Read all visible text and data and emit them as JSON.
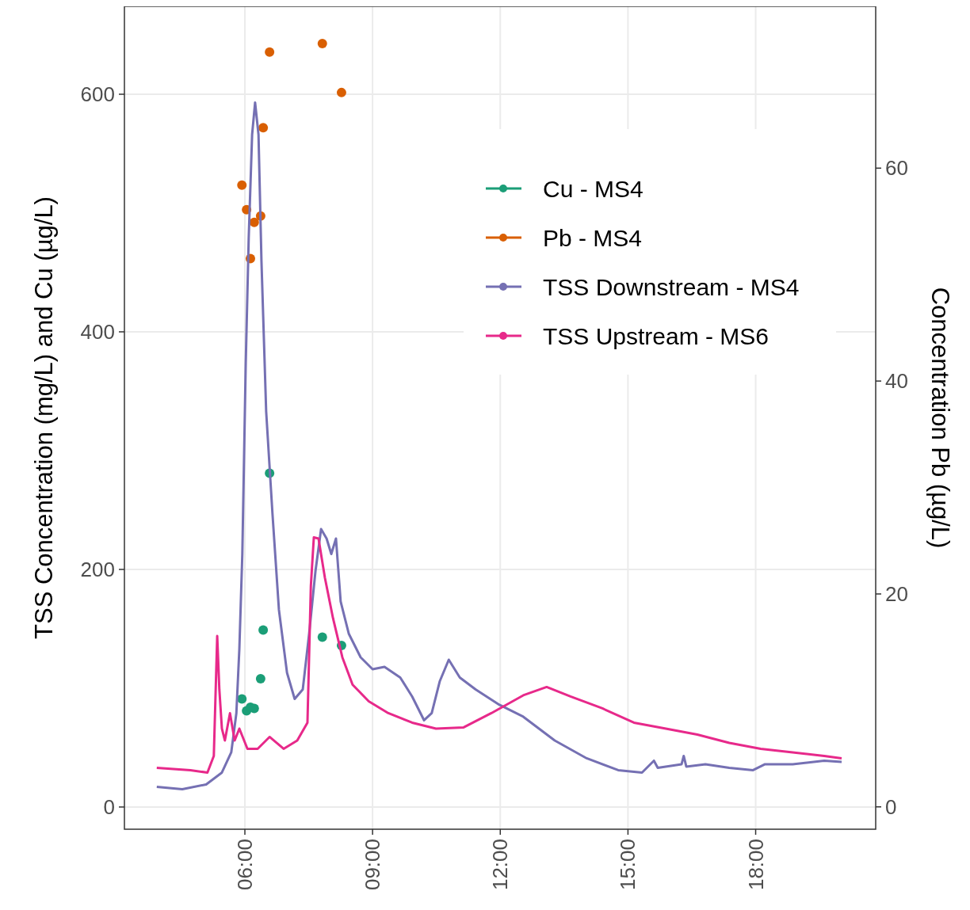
{
  "chart_data": {
    "type": "line",
    "ylabel": "TSS Concentration (mg/L) and Cu (µg/L)",
    "y2label": "Concentration Pb (µg/L)",
    "xlim": [
      3.17,
      20.82
    ],
    "xticks": [
      {
        "value": 6,
        "label": "06:00"
      },
      {
        "value": 9,
        "label": "09:00"
      },
      {
        "value": 12,
        "label": "12:00"
      },
      {
        "value": 15,
        "label": "15:00"
      },
      {
        "value": 18,
        "label": "18:00"
      }
    ],
    "ylim": [
      -18.7,
      674
    ],
    "yticks": [
      0,
      200,
      400,
      600
    ],
    "y2lim": [
      -2.1,
      75.2
    ],
    "y2ticks": [
      0,
      20,
      40,
      60
    ],
    "grid": true,
    "legend": "top right",
    "series": [
      {
        "name": "Cu - MS4",
        "type": "scatter",
        "marker": "circle",
        "color": "#1b9e77",
        "x": [
          5.93,
          6.04,
          6.13,
          6.22,
          6.37,
          6.43,
          6.58,
          7.82,
          8.27
        ],
        "values": [
          91,
          81,
          84,
          83,
          108,
          149,
          281,
          143,
          136
        ]
      },
      {
        "name": "Pb - MS4",
        "type": "scatter",
        "marker": "circle",
        "axis": "y2",
        "color": "#d95f02",
        "x": [
          5.93,
          6.04,
          6.13,
          6.22,
          6.37,
          6.43,
          6.58,
          7.82,
          8.27
        ],
        "values": [
          58.4,
          56.1,
          51.5,
          54.9,
          55.5,
          63.8,
          70.9,
          71.7,
          67.1
        ]
      },
      {
        "name": "TSS Downstream - MS4",
        "color": "#7570b3",
        "x": [
          3.93,
          4.53,
          5.09,
          5.46,
          5.68,
          5.8,
          5.87,
          5.94,
          6.02,
          6.09,
          6.17,
          6.24,
          6.32,
          6.39,
          6.5,
          6.65,
          6.8,
          6.99,
          7.17,
          7.36,
          7.51,
          7.66,
          7.79,
          7.92,
          8.03,
          8.14,
          8.25,
          8.44,
          8.72,
          9.0,
          9.28,
          9.65,
          9.93,
          10.21,
          10.39,
          10.58,
          10.79,
          11.05,
          11.42,
          11.98,
          12.54,
          13.28,
          14.03,
          14.77,
          15.33,
          15.61,
          15.7,
          16.26,
          16.31,
          16.37,
          16.82,
          17.38,
          17.94,
          18.22,
          18.87,
          19.61,
          20.02
        ],
        "values": [
          17,
          15,
          19,
          29,
          46,
          79,
          133,
          213,
          373,
          479,
          566,
          593,
          566,
          459,
          333,
          246,
          166,
          113,
          91,
          99,
          146,
          199,
          234,
          226,
          213,
          226,
          173,
          146,
          126,
          116,
          118,
          109,
          93,
          73,
          79,
          106,
          124,
          109,
          99,
          86,
          76,
          56,
          41,
          31,
          29,
          39,
          33,
          36,
          43,
          34,
          36,
          33,
          31,
          36,
          36,
          39,
          38
        ]
      },
      {
        "name": "TSS Upstream - MS6",
        "color": "#e7298a",
        "x": [
          3.93,
          4.72,
          5.12,
          5.27,
          5.35,
          5.4,
          5.46,
          5.53,
          5.65,
          5.76,
          5.87,
          6.06,
          6.3,
          6.58,
          6.91,
          7.23,
          7.47,
          7.55,
          7.62,
          7.73,
          7.88,
          8.07,
          8.29,
          8.53,
          8.91,
          9.37,
          9.93,
          10.49,
          11.14,
          11.79,
          12.54,
          13.09,
          13.65,
          14.4,
          15.14,
          15.89,
          16.63,
          17.38,
          18.12,
          18.87,
          19.61,
          20.02
        ],
        "values": [
          33,
          31,
          29,
          43,
          144,
          99,
          66,
          56,
          79,
          56,
          66,
          49,
          49,
          59,
          49,
          56,
          71,
          186,
          227,
          226,
          193,
          159,
          126,
          103,
          89,
          79,
          71,
          66,
          67,
          79,
          94,
          101,
          93,
          83,
          71,
          66,
          61,
          54,
          49,
          46,
          43,
          41
        ]
      }
    ]
  }
}
